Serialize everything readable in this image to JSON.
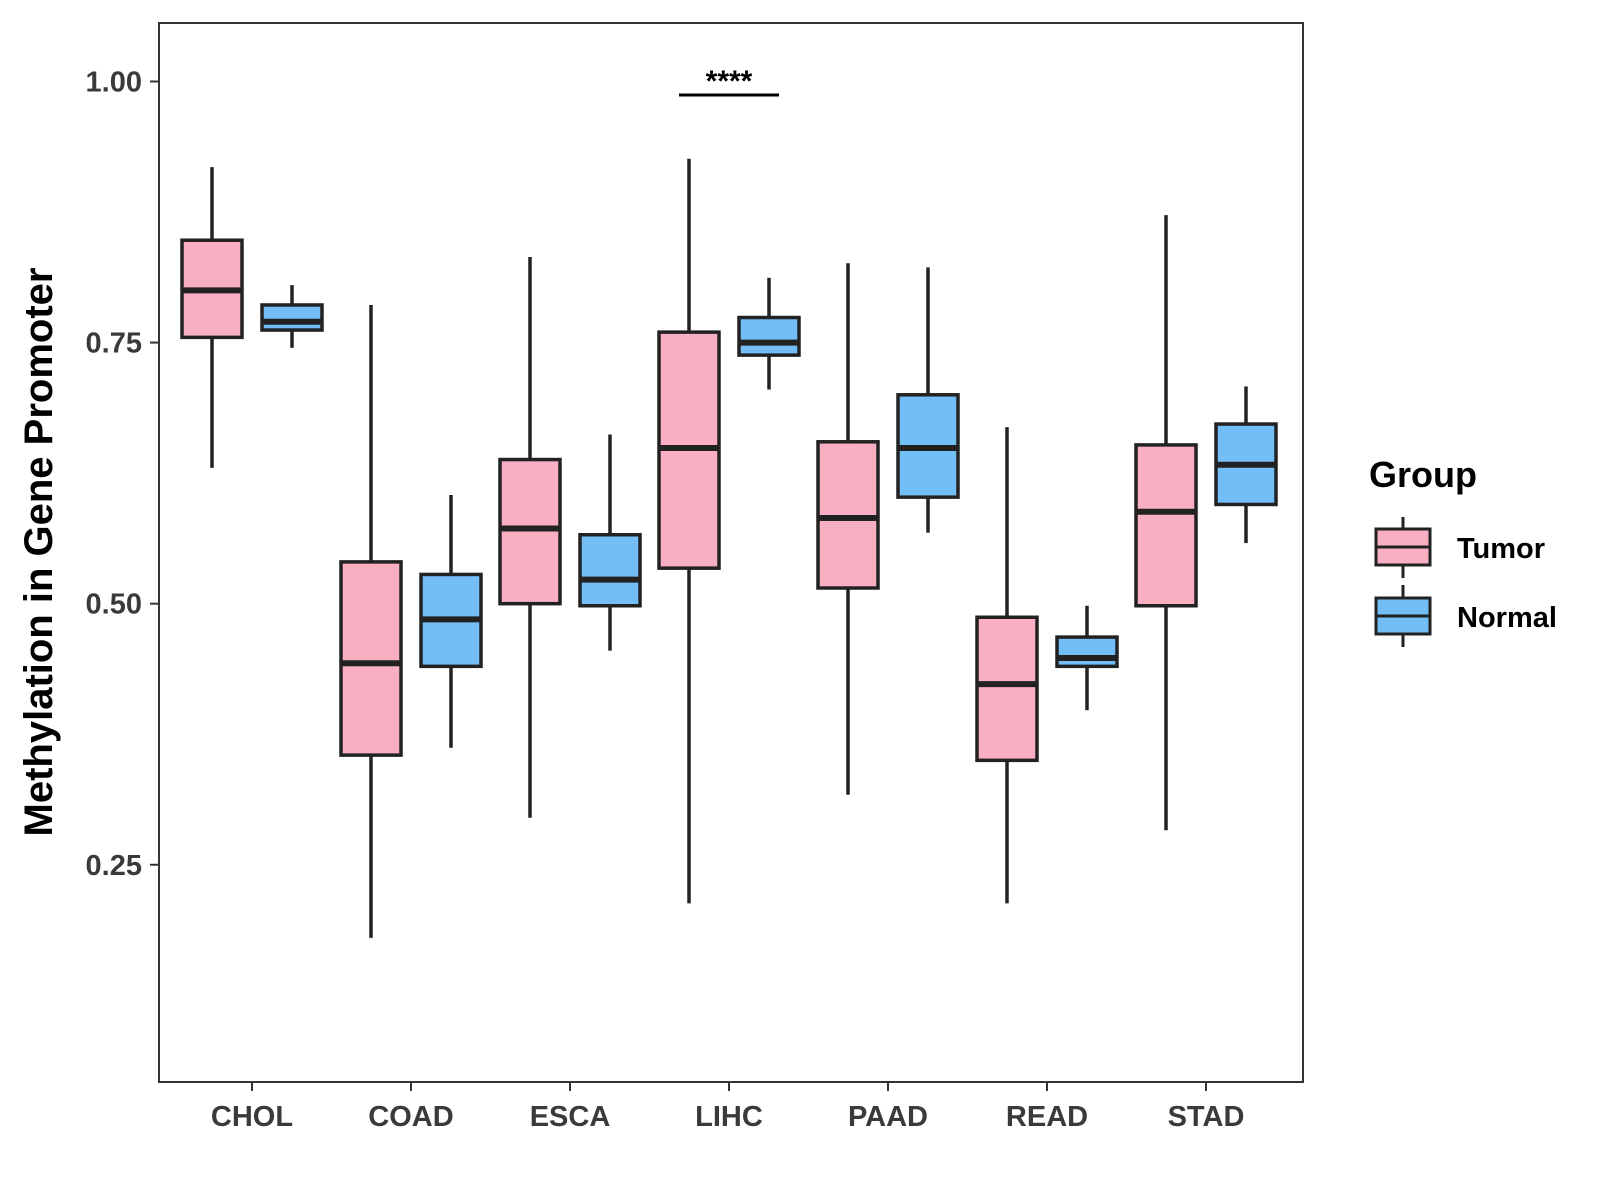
{
  "chart_data": {
    "type": "boxplot",
    "title": "",
    "xlabel": "",
    "ylabel": "Methylation in Gene Promoter",
    "ylim": [
      0.042,
      1.056
    ],
    "yticks": [
      0.25,
      0.5,
      0.75,
      1.0
    ],
    "ytick_labels": [
      "0.25",
      "0.50",
      "0.75",
      "1.00"
    ],
    "categories": [
      "CHOL",
      "COAD",
      "ESCA",
      "LIHC",
      "PAAD",
      "READ",
      "STAD"
    ],
    "legend": {
      "title": "Group",
      "position": "right",
      "entries": [
        {
          "name": "Tumor",
          "color": "#F9AFC2"
        },
        {
          "name": "Normal",
          "color": "#74BEF7"
        }
      ]
    },
    "series": [
      {
        "name": "Tumor",
        "color": "#F9AFC2",
        "boxes": [
          {
            "min": 0.63,
            "q1": 0.755,
            "median": 0.8,
            "q3": 0.848,
            "max": 0.918
          },
          {
            "min": 0.18,
            "q1": 0.355,
            "median": 0.443,
            "q3": 0.54,
            "max": 0.786
          },
          {
            "min": 0.295,
            "q1": 0.5,
            "median": 0.572,
            "q3": 0.638,
            "max": 0.832
          },
          {
            "min": 0.213,
            "q1": 0.534,
            "median": 0.649,
            "q3": 0.76,
            "max": 0.926
          },
          {
            "min": 0.317,
            "q1": 0.515,
            "median": 0.582,
            "q3": 0.655,
            "max": 0.826
          },
          {
            "min": 0.213,
            "q1": 0.35,
            "median": 0.423,
            "q3": 0.487,
            "max": 0.669
          },
          {
            "min": 0.283,
            "q1": 0.498,
            "median": 0.588,
            "q3": 0.652,
            "max": 0.872
          }
        ]
      },
      {
        "name": "Normal",
        "color": "#74BEF7",
        "boxes": [
          {
            "min": 0.745,
            "q1": 0.762,
            "median": 0.77,
            "q3": 0.786,
            "max": 0.805
          },
          {
            "min": 0.362,
            "q1": 0.44,
            "median": 0.485,
            "q3": 0.528,
            "max": 0.604
          },
          {
            "min": 0.455,
            "q1": 0.498,
            "median": 0.523,
            "q3": 0.566,
            "max": 0.662
          },
          {
            "min": 0.705,
            "q1": 0.738,
            "median": 0.75,
            "q3": 0.774,
            "max": 0.812
          },
          {
            "min": 0.568,
            "q1": 0.602,
            "median": 0.649,
            "q3": 0.7,
            "max": 0.822
          },
          {
            "min": 0.398,
            "q1": 0.44,
            "median": 0.448,
            "q3": 0.468,
            "max": 0.498
          },
          {
            "min": 0.558,
            "q1": 0.595,
            "median": 0.633,
            "q3": 0.672,
            "max": 0.708
          }
        ]
      }
    ],
    "annotations": [
      {
        "category": "LIHC",
        "text": "****",
        "y": 0.987
      }
    ]
  }
}
